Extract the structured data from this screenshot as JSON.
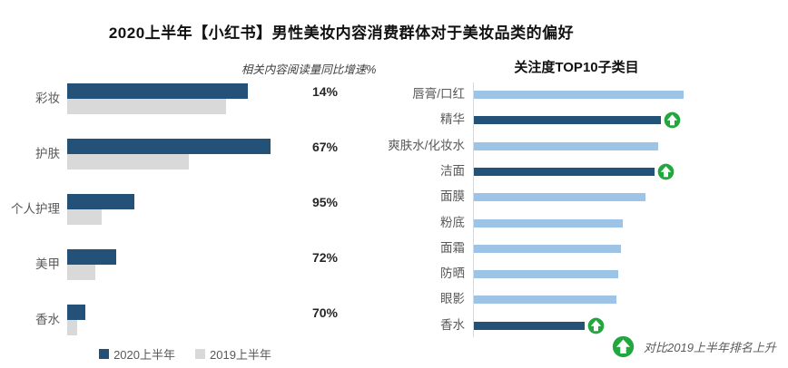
{
  "title": "2020上半年【小红书】男性美妆内容消费群体对于美妆品类的偏好",
  "colors": {
    "navy": "#235177",
    "light_blue": "#9DC3E6",
    "gray_bar": "#D9D9D9",
    "green": "#22A63E",
    "label_gray": "#595959",
    "axis_gray": "#D9D9D9"
  },
  "chart_data": [
    {
      "type": "bar",
      "orientation": "horizontal",
      "title": "",
      "growth_header": "相关内容阅读量同比增速%",
      "categories": [
        "彩妆",
        "护肤",
        "个人护理",
        "美甲",
        "香水"
      ],
      "series": [
        {
          "name": "2020上半年",
          "color_key": "navy",
          "values": [
            89,
            100,
            33,
            24,
            9
          ]
        },
        {
          "name": "2019上半年",
          "color_key": "gray_bar",
          "values": [
            78,
            60,
            17,
            14,
            5
          ]
        }
      ],
      "growth_labels": [
        "14%",
        "67%",
        "95%",
        "72%",
        "70%"
      ],
      "value_unit": "relative content reading volume (index, 护肤2020 = 100)",
      "legend_position": "bottom",
      "grid": false
    },
    {
      "type": "bar",
      "orientation": "horizontal",
      "title": "关注度TOP10子类目",
      "categories": [
        "唇膏/口红",
        "精华",
        "爽肤水/化妆水",
        "洁面",
        "面膜",
        "粉底",
        "面霜",
        "防晒",
        "眼影",
        "香水"
      ],
      "values": [
        100,
        89,
        88,
        86,
        82,
        71,
        70,
        69,
        68,
        53
      ],
      "rank_up": [
        false,
        true,
        false,
        true,
        false,
        false,
        false,
        false,
        false,
        true
      ],
      "value_unit": "relative attention (index, 唇膏/口红 = 100)",
      "footnote": "对比2019上半年排名上升",
      "grid": false
    }
  ]
}
